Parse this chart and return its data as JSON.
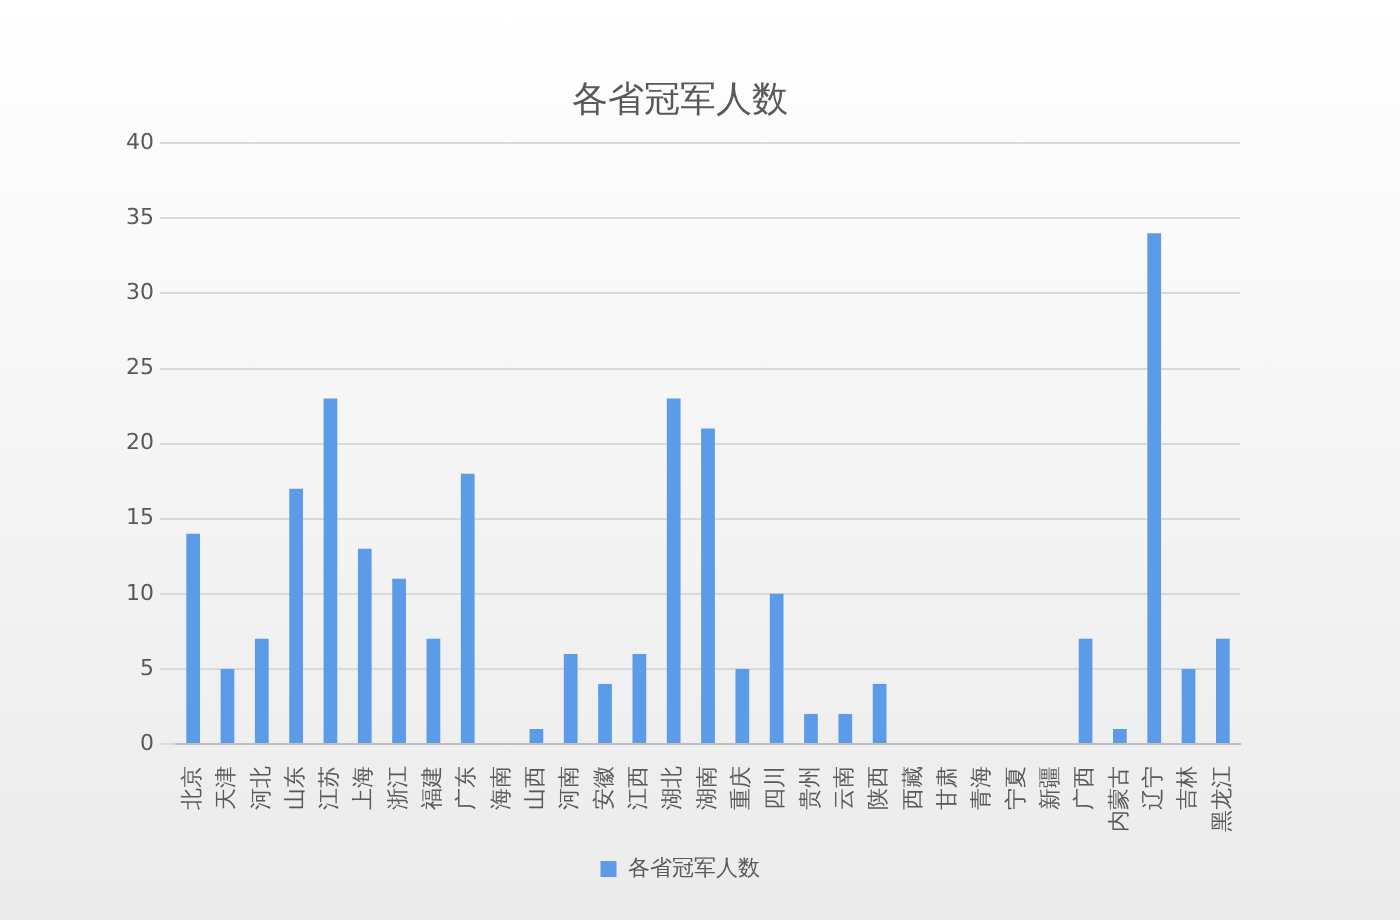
{
  "chart_data": {
    "type": "bar",
    "title": "各省冠军人数",
    "categories": [
      "北京",
      "天津",
      "河北",
      "山东",
      "江苏",
      "上海",
      "浙江",
      "福建",
      "广东",
      "海南",
      "山西",
      "河南",
      "安徽",
      "江西",
      "湖北",
      "湖南",
      "重庆",
      "四川",
      "贵州",
      "云南",
      "陕西",
      "西藏",
      "甘肃",
      "青海",
      "宁夏",
      "新疆",
      "广西",
      "内蒙古",
      "辽宁",
      "吉林",
      "黑龙江"
    ],
    "series": [
      {
        "name": "各省冠军人数",
        "color": "#5b9be8",
        "values": [
          14,
          5,
          7,
          17,
          23,
          13,
          11,
          7,
          18,
          0,
          1,
          6,
          4,
          6,
          23,
          21,
          5,
          10,
          2,
          2,
          4,
          0,
          0,
          0,
          0,
          0,
          7,
          1,
          34,
          5,
          7
        ]
      }
    ],
    "ylim": [
      0,
      40
    ],
    "yticks": [
      0,
      5,
      10,
      15,
      20,
      25,
      30,
      35,
      40
    ],
    "grid": "y",
    "legend": "bottom"
  }
}
